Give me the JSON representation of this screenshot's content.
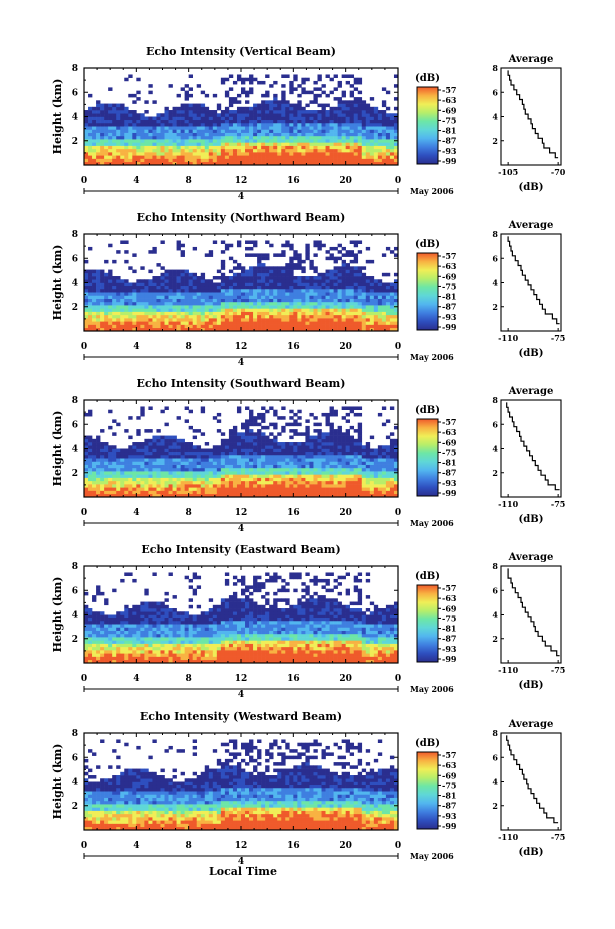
{
  "chart_data": [
    {
      "type": "heatmap",
      "title": "Echo Intensity (Vertical Beam)",
      "ylabel": "Height (km)",
      "ylim": [
        0,
        8
      ],
      "y_ticks": [
        "2",
        "4",
        "6",
        "8"
      ],
      "xlim": [
        0,
        24
      ],
      "x_ticks": [
        "0",
        "4",
        "8",
        "12",
        "16",
        "20",
        "0"
      ],
      "date_tick": "4",
      "date_label": "May 2006",
      "colorbar": {
        "unit": "(dB)",
        "ticks": [
          "-57",
          "-63",
          "-69",
          "-75",
          "-81",
          "-87",
          "-93",
          "-99"
        ]
      },
      "profile": {
        "title": "Average",
        "xlabel": "(dB)",
        "x_ticks": [
          "-105",
          "-70"
        ],
        "xlim": [
          -110,
          -68
        ],
        "heights": [
          0.6,
          1.0,
          1.4,
          1.8,
          2.2,
          2.6,
          3.0,
          3.4,
          3.8,
          4.2,
          4.6,
          5.0,
          5.4,
          5.8,
          6.2,
          6.6,
          7.0,
          7.4,
          7.8
        ],
        "values": [
          -70,
          -72,
          -76,
          -80,
          -81,
          -84,
          -86,
          -88,
          -89,
          -91,
          -93,
          -94,
          -95,
          -97,
          -99,
          -101,
          -103,
          -104,
          -105
        ]
      }
    },
    {
      "type": "heatmap",
      "title": "Echo Intensity (Northward Beam)",
      "ylabel": "Height (km)",
      "ylim": [
        0,
        8
      ],
      "y_ticks": [
        "2",
        "4",
        "6",
        "8"
      ],
      "xlim": [
        0,
        24
      ],
      "x_ticks": [
        "0",
        "4",
        "8",
        "12",
        "16",
        "20",
        "0"
      ],
      "date_tick": "4",
      "date_label": "May 2006",
      "colorbar": {
        "unit": "(dB)",
        "ticks": [
          "-57",
          "-63",
          "-69",
          "-75",
          "-81",
          "-87",
          "-93",
          "-99"
        ]
      },
      "profile": {
        "title": "Average",
        "xlabel": "(dB)",
        "x_ticks": [
          "-110",
          "-75"
        ],
        "xlim": [
          -115,
          -73
        ],
        "heights": [
          0.6,
          1.0,
          1.4,
          1.8,
          2.2,
          2.6,
          3.0,
          3.4,
          3.8,
          4.2,
          4.6,
          5.0,
          5.4,
          5.8,
          6.2,
          6.6,
          7.0,
          7.4,
          7.8
        ],
        "values": [
          -74,
          -76,
          -79,
          -84,
          -86,
          -88,
          -90,
          -92,
          -94,
          -96,
          -98,
          -100,
          -101,
          -103,
          -105,
          -107,
          -108,
          -109,
          -110
        ]
      }
    },
    {
      "type": "heatmap",
      "title": "Echo Intensity (Southward Beam)",
      "ylabel": "Height (km)",
      "ylim": [
        0,
        8
      ],
      "y_ticks": [
        "2",
        "4",
        "6",
        "8"
      ],
      "xlim": [
        0,
        24
      ],
      "x_ticks": [
        "0",
        "4",
        "8",
        "12",
        "16",
        "20",
        "0"
      ],
      "date_tick": "4",
      "date_label": "May 2006",
      "colorbar": {
        "unit": "(dB)",
        "ticks": [
          "-57",
          "-63",
          "-69",
          "-75",
          "-81",
          "-87",
          "-93",
          "-99"
        ]
      },
      "profile": {
        "title": "Average",
        "xlabel": "(dB)",
        "x_ticks": [
          "-110",
          "-75"
        ],
        "xlim": [
          -115,
          -73
        ],
        "heights": [
          0.6,
          1.0,
          1.4,
          1.8,
          2.2,
          2.6,
          3.0,
          3.4,
          3.8,
          4.2,
          4.6,
          5.0,
          5.4,
          5.8,
          6.2,
          6.6,
          7.0,
          7.4,
          7.8
        ],
        "values": [
          -74,
          -77,
          -82,
          -84,
          -87,
          -89,
          -91,
          -93,
          -95,
          -97,
          -99,
          -101,
          -102,
          -104,
          -106,
          -107,
          -109,
          -110,
          -111
        ]
      }
    },
    {
      "type": "heatmap",
      "title": "Echo Intensity (Eastward Beam)",
      "ylabel": "Height (km)",
      "ylim": [
        0,
        8
      ],
      "y_ticks": [
        "2",
        "4",
        "6",
        "8"
      ],
      "xlim": [
        0,
        24
      ],
      "x_ticks": [
        "0",
        "4",
        "8",
        "12",
        "16",
        "20",
        "0"
      ],
      "date_tick": "4",
      "date_label": "May 2006",
      "colorbar": {
        "unit": "(dB)",
        "ticks": [
          "-57",
          "-63",
          "-69",
          "-75",
          "-81",
          "-87",
          "-93",
          "-99"
        ]
      },
      "profile": {
        "title": "Average",
        "xlabel": "(dB)",
        "x_ticks": [
          "-110",
          "-75"
        ],
        "xlim": [
          -115,
          -73
        ],
        "heights": [
          0.6,
          1.0,
          1.4,
          1.8,
          2.2,
          2.6,
          3.0,
          3.4,
          3.8,
          4.2,
          4.6,
          5.0,
          5.4,
          5.8,
          6.2,
          6.6,
          7.0,
          7.4,
          7.8
        ],
        "values": [
          -74,
          -76,
          -80,
          -84,
          -86,
          -89,
          -91,
          -92,
          -94,
          -96,
          -98,
          -100,
          -101,
          -103,
          -105,
          -107,
          -108,
          -110,
          -110
        ]
      }
    },
    {
      "type": "heatmap",
      "title": "Echo Intensity (Westward Beam)",
      "ylabel": "Height (km)",
      "ylim": [
        0,
        8
      ],
      "y_ticks": [
        "2",
        "4",
        "6",
        "8"
      ],
      "xlim": [
        0,
        24
      ],
      "x_ticks": [
        "0",
        "4",
        "8",
        "12",
        "16",
        "20",
        "0"
      ],
      "date_tick": "4",
      "date_label": "May 2006",
      "xlabel": "Local Time",
      "colorbar": {
        "unit": "(dB)",
        "ticks": [
          "-57",
          "-63",
          "-69",
          "-75",
          "-81",
          "-87",
          "-93",
          "-99"
        ]
      },
      "profile": {
        "title": "Average",
        "xlabel": "(dB)",
        "x_ticks": [
          "-110",
          "-75"
        ],
        "xlim": [
          -115,
          -73
        ],
        "heights": [
          0.6,
          1.0,
          1.4,
          1.8,
          2.2,
          2.6,
          3.0,
          3.4,
          3.8,
          4.2,
          4.6,
          5.0,
          5.4,
          5.8,
          6.2,
          6.6,
          7.0,
          7.4,
          7.8
        ],
        "values": [
          -75,
          -78,
          -83,
          -85,
          -88,
          -90,
          -92,
          -94,
          -96,
          -97,
          -99,
          -100,
          -102,
          -104,
          -106,
          -108,
          -109,
          -110,
          -111
        ]
      }
    }
  ]
}
